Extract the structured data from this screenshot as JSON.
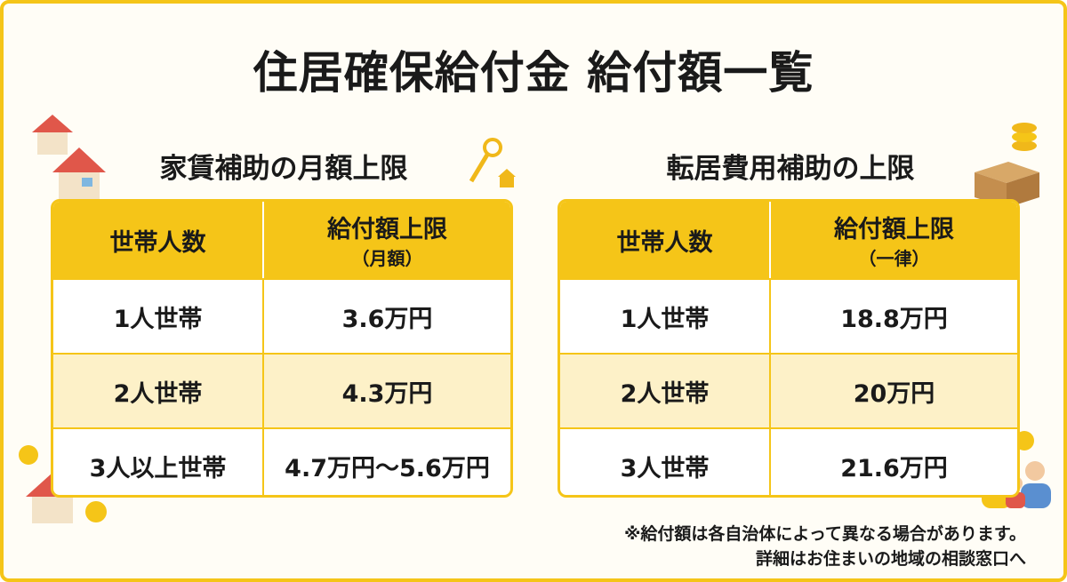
{
  "title": "住居確保給付金 給付額一覧",
  "left": {
    "heading": "家賃補助の月額上限",
    "table": {
      "header": [
        "世帯人数",
        "給付額上限",
        "（月額）"
      ],
      "rows": [
        [
          "1人世帯",
          "3.6万円"
        ],
        [
          "2人世帯",
          "4.3万円"
        ],
        [
          "3人以上世帯",
          "4.7万円～5.6万円"
        ]
      ]
    }
  },
  "right": {
    "heading": "転居費用補助の上限",
    "table": {
      "header": [
        "世帯人数",
        "給付額上限",
        "（一律）"
      ],
      "rows": [
        [
          "1人世帯",
          "18.8万円"
        ],
        [
          "2人世帯",
          "20万円"
        ],
        [
          "3人世帯",
          "21.6万円"
        ]
      ]
    }
  },
  "notes": [
    "※給付額は各自治体によって異なる場合があります。",
    "詳細はお住まいの地域の相談窓口へ"
  ]
}
